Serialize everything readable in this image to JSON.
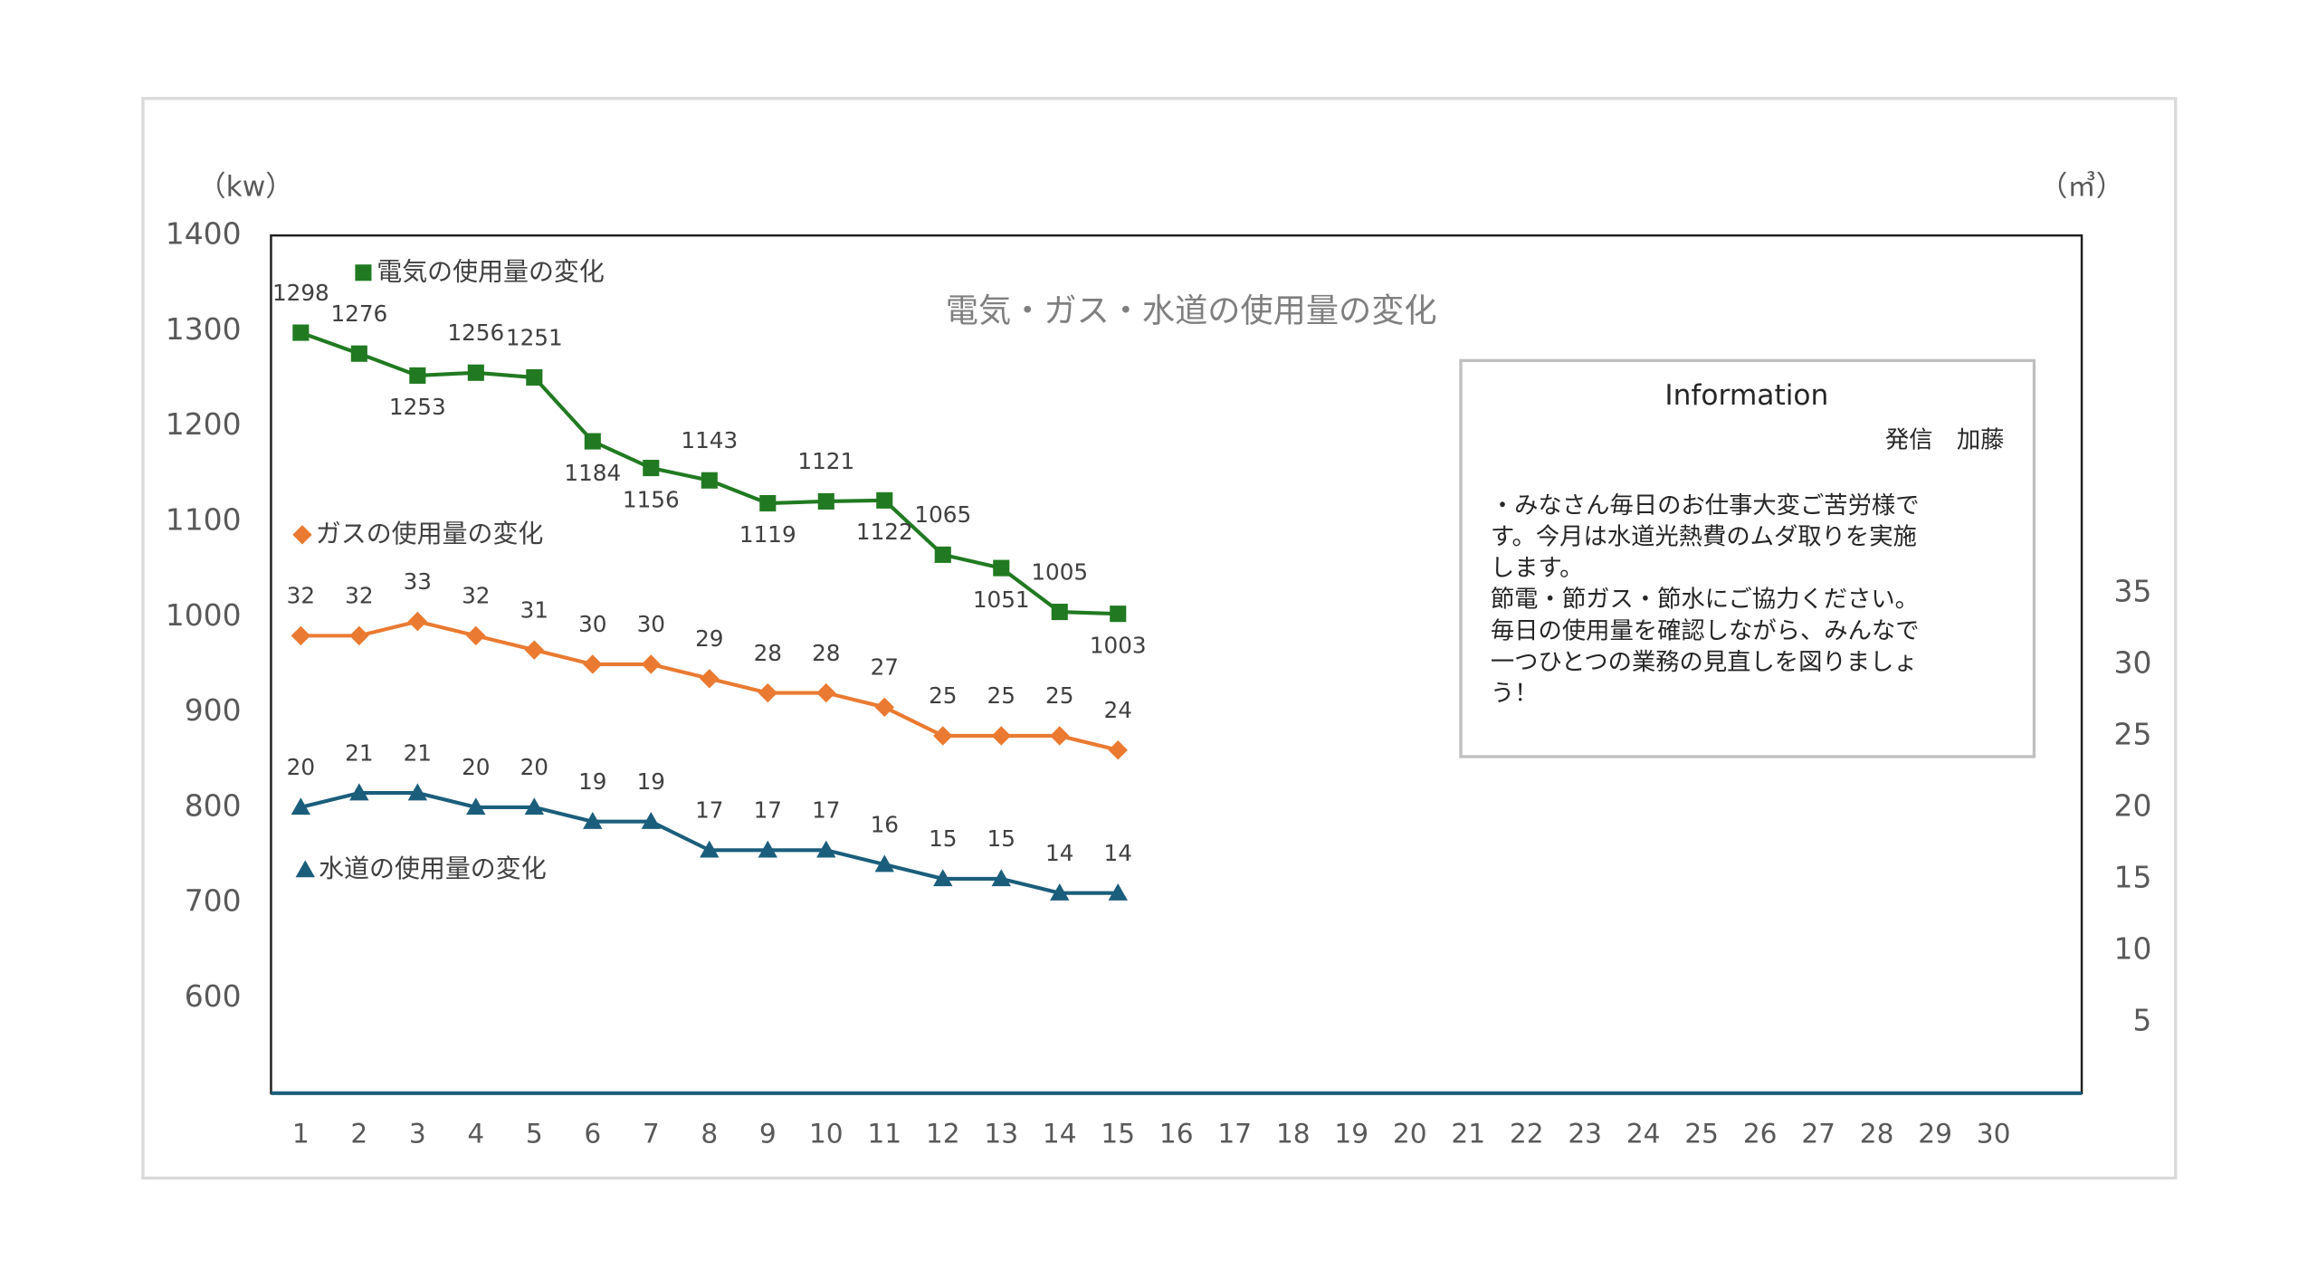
{
  "chart_data": {
    "type": "line",
    "title": "電気・ガス・水道の使用量の変化",
    "y_label": "（kw）",
    "y2_label": "（㎥）",
    "categories": [
      "1",
      "2",
      "3",
      "4",
      "5",
      "6",
      "7",
      "8",
      "9",
      "10",
      "11",
      "12",
      "13",
      "14",
      "15",
      "16",
      "17",
      "18",
      "19",
      "20",
      "21",
      "22",
      "23",
      "24",
      "25",
      "26",
      "27",
      "28",
      "29",
      "30"
    ],
    "ylim": [
      500,
      1400
    ],
    "yticks": [
      600,
      700,
      800,
      900,
      1000,
      1100,
      1200,
      1300,
      1400
    ],
    "y2lim": [
      0,
      60
    ],
    "y2ticks": [
      5,
      10,
      15,
      20,
      25,
      30,
      35
    ],
    "series": [
      {
        "name": "電気の使用量の変化",
        "color": "#217a21",
        "marker": "square",
        "values": [
          1298,
          1276,
          1253,
          1256,
          1251,
          1184,
          1156,
          1143,
          1119,
          1121,
          1122,
          1065,
          1051,
          1005,
          1003,
          null,
          null,
          null,
          null,
          null,
          null,
          null,
          null,
          null,
          null,
          null,
          null,
          null,
          null,
          null
        ]
      },
      {
        "name": "ガスの使用量の変化",
        "color": "#ea7a31",
        "marker": "diamond",
        "axis": "y2",
        "values": [
          32,
          32,
          33,
          32,
          31,
          30,
          30,
          29,
          28,
          28,
          27,
          25,
          25,
          25,
          24,
          null,
          null,
          null,
          null,
          null,
          null,
          null,
          null,
          null,
          null,
          null,
          null,
          null,
          null,
          null
        ]
      },
      {
        "name": "水道の使用量の変化",
        "color": "#1b5e7c",
        "marker": "triangle",
        "axis": "y2",
        "values": [
          20,
          21,
          21,
          20,
          20,
          19,
          19,
          17,
          17,
          17,
          16,
          15,
          15,
          14,
          14,
          null,
          null,
          null,
          null,
          null,
          null,
          null,
          null,
          null,
          null,
          null,
          null,
          null,
          null,
          null
        ]
      }
    ]
  },
  "information": {
    "title": "Information",
    "sender": "発信　加藤",
    "lines": [
      "・みなさん毎日のお仕事大変ご苦労様で",
      "す。今月は水道光熱費のムダ取りを実施",
      "します。",
      "節電・節ガス・節水にご協力ください。",
      "毎日の使用量を確認しながら、みんなで",
      "一つひとつの業務の見直しを図りましょ",
      "う！"
    ]
  }
}
